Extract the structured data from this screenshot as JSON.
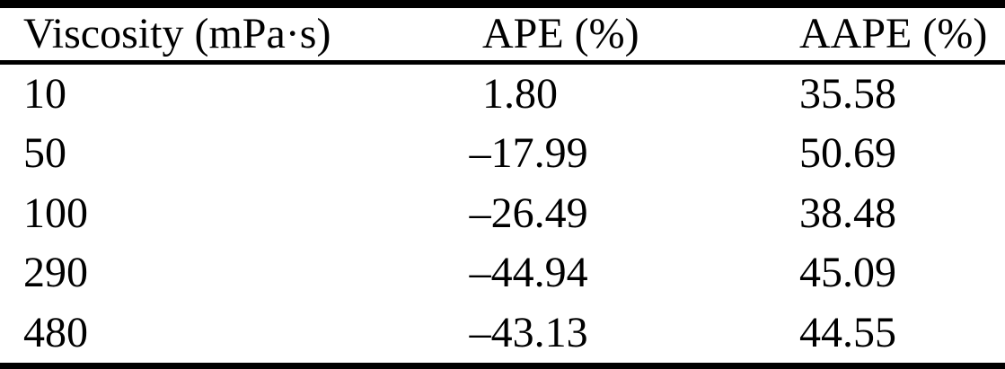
{
  "page": {
    "background": "#ffffff",
    "text_color": "#000000"
  },
  "table": {
    "header": {
      "viscosity": "Viscosity (mPa·s)",
      "ape": "APE (%)",
      "aape": "AAPE (%)"
    },
    "rows": [
      {
        "viscosity": "10",
        "ape_sign": "",
        "ape": "1.80",
        "aape": "35.58"
      },
      {
        "viscosity": "50",
        "ape_sign": "–",
        "ape": "17.99",
        "aape": "50.69"
      },
      {
        "viscosity": "100",
        "ape_sign": "–",
        "ape": "26.49",
        "aape": "38.48"
      },
      {
        "viscosity": "290",
        "ape_sign": "–",
        "ape": "44.94",
        "aape": "45.09"
      },
      {
        "viscosity": "480",
        "ape_sign": "–",
        "ape": "43.13",
        "aape": "44.55"
      }
    ]
  },
  "chart_data": {
    "type": "table",
    "columns": [
      "Viscosity (mPa·s)",
      "APE (%)",
      "AAPE (%)"
    ],
    "rows": [
      [
        10,
        1.8,
        35.58
      ],
      [
        50,
        -17.99,
        50.69
      ],
      [
        100,
        -26.49,
        38.48
      ],
      [
        290,
        -44.94,
        45.09
      ],
      [
        480,
        -43.13,
        44.55
      ]
    ]
  }
}
